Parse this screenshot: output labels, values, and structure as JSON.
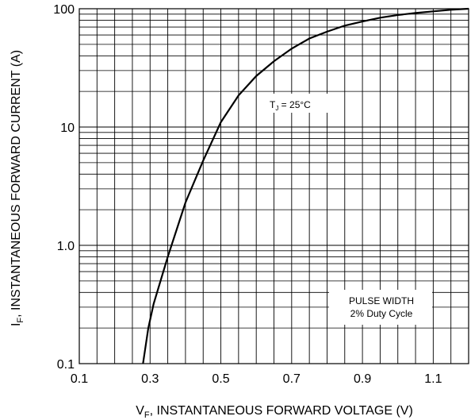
{
  "chart_data": {
    "type": "line",
    "x_axis": {
      "label_main": "V",
      "label_sub": "F",
      "label_rest": ", INSTANTANEOUS FORWARD VOLTAGE (V)",
      "min": 0.1,
      "max": 1.2,
      "ticks": [
        0.1,
        0.3,
        0.5,
        0.7,
        0.9,
        1.1
      ],
      "tick_labels": [
        "0.1",
        "0.3",
        "0.5",
        "0.7",
        "0.9",
        "1.1"
      ]
    },
    "y_axis": {
      "label_main": "I",
      "label_sub": "F",
      "label_rest": ", INSTANTANEOUS FORWARD CURRENT (A)",
      "scale": "log",
      "min": 0.1,
      "max": 100,
      "ticks": [
        0.1,
        1.0,
        10,
        100
      ],
      "tick_labels": [
        "0.1",
        "1.0",
        "10",
        "100"
      ]
    },
    "grid": true,
    "series": [
      {
        "x": [
          0.28,
          0.295,
          0.31,
          0.35,
          0.4,
          0.45,
          0.5,
          0.55,
          0.6,
          0.65,
          0.7,
          0.75,
          0.8,
          0.85,
          0.9,
          0.95,
          1.0,
          1.05,
          1.1,
          1.15,
          1.2
        ],
        "y": [
          0.1,
          0.2,
          0.32,
          0.8,
          2.3,
          5.2,
          11,
          18.5,
          27,
          36,
          46,
          56,
          64,
          72,
          78,
          84,
          88.5,
          92,
          95,
          98,
          100
        ]
      }
    ],
    "annotations": {
      "tj": {
        "main": "T",
        "sub": "J",
        "rest": " = 25°C"
      },
      "pulse_line1": "PULSE WIDTH",
      "pulse_line2": "2% Duty Cycle"
    }
  }
}
